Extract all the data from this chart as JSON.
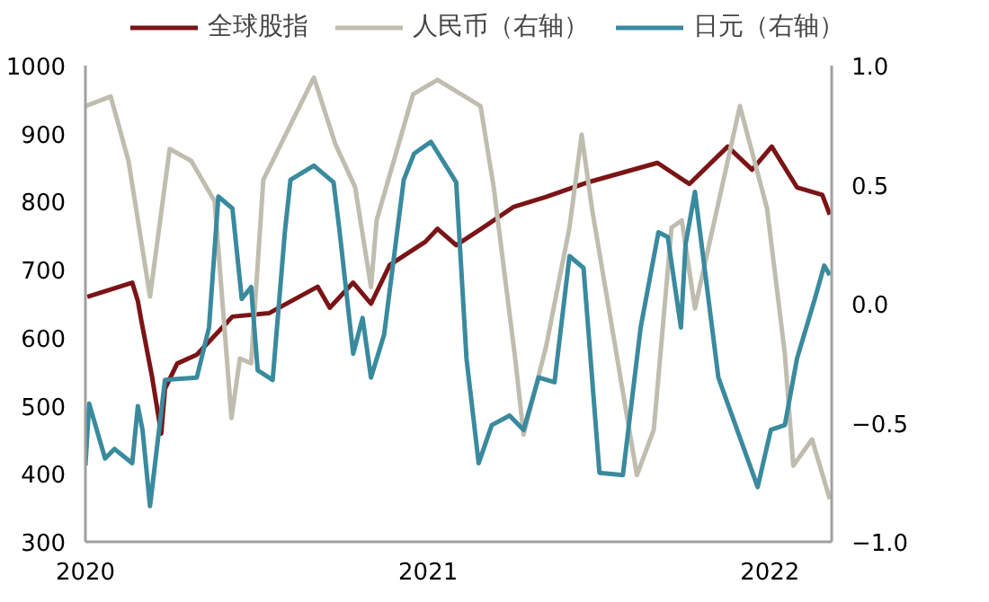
{
  "chart_data": {
    "type": "line",
    "legend": "top",
    "grid": false,
    "xlim": [
      "2020-01-01",
      "2022-03-08"
    ],
    "xticks": [
      {
        "value": "2020-01-01",
        "label": "2020"
      },
      {
        "value": "2021-01-01",
        "label": "2021"
      },
      {
        "value": "2022-01-01",
        "label": "2022"
      }
    ],
    "ylim": [
      300,
      1000
    ],
    "yticks": [
      300,
      400,
      500,
      600,
      700,
      800,
      900,
      1000
    ],
    "y2lim": [
      -1.0,
      1.0
    ],
    "y2ticks": [
      {
        "value": -1.0,
        "label": "−1.0"
      },
      {
        "value": -0.5,
        "label": "−0.5"
      },
      {
        "value": 0.0,
        "label": "0.0"
      },
      {
        "value": 0.5,
        "label": "0.5"
      },
      {
        "value": 1.0,
        "label": "1.0"
      }
    ],
    "series": [
      {
        "name": "全球股指",
        "color": "#7b1416",
        "x": [
          "2020-01-03",
          "2020-02-20",
          "2020-02-26",
          "2020-03-01",
          "2020-03-12",
          "2020-03-22",
          "2020-03-26",
          "2020-04-08",
          "2020-04-29",
          "2020-06-06",
          "2020-07-15",
          "2020-09-05",
          "2020-09-18",
          "2020-10-13",
          "2020-11-01",
          "2020-11-21",
          "2020-12-29",
          "2021-01-11",
          "2021-01-31",
          "2021-03-02",
          "2021-04-02",
          "2021-05-07",
          "2021-06-22",
          "2021-09-03",
          "2021-10-07",
          "2021-11-17",
          "2021-12-13",
          "2022-01-03",
          "2022-01-30",
          "2022-02-26",
          "2022-03-06"
        ],
        "values": [
          660,
          681,
          654,
          623,
          544,
          459,
          525,
          562,
          575,
          631,
          636,
          675,
          644,
          681,
          650,
          707,
          741,
          760,
          736,
          763,
          792,
          807,
          829,
          857,
          826,
          881,
          847,
          881,
          821,
          810,
          781
        ]
      },
      {
        "name": "人民币（右轴）",
        "color": "#bfbdaf",
        "axis": "y2",
        "x": [
          "2020-01-01",
          "2020-01-28",
          "2020-02-16",
          "2020-03-10",
          "2020-03-31",
          "2020-04-23",
          "2020-05-18",
          "2020-06-05",
          "2020-06-14",
          "2020-06-26",
          "2020-07-09",
          "2020-09-01",
          "2020-09-24",
          "2020-10-15",
          "2020-11-01",
          "2020-11-07",
          "2020-12-16",
          "2021-01-11",
          "2021-02-26",
          "2021-03-12",
          "2021-04-04",
          "2021-04-13",
          "2021-05-07",
          "2021-06-01",
          "2021-06-14",
          "2021-06-25",
          "2021-07-22",
          "2021-08-12",
          "2021-08-30",
          "2021-09-18",
          "2021-09-29",
          "2021-10-13",
          "2021-11-30",
          "2021-12-29",
          "2022-01-17",
          "2022-01-26",
          "2022-02-15",
          "2022-03-06"
        ],
        "values": [
          0.83,
          0.87,
          0.6,
          0.03,
          0.65,
          0.6,
          0.43,
          -0.48,
          -0.23,
          -0.25,
          0.52,
          0.95,
          0.67,
          0.49,
          0.07,
          0.35,
          0.88,
          0.94,
          0.83,
          0.49,
          -0.23,
          -0.55,
          -0.18,
          0.32,
          0.71,
          0.4,
          -0.23,
          -0.72,
          -0.53,
          0.32,
          0.35,
          -0.02,
          0.83,
          0.4,
          -0.21,
          -0.68,
          -0.57,
          -0.82
        ]
      },
      {
        "name": "日元（右轴）",
        "color": "#3a8a9e",
        "axis": "y2",
        "x": [
          "2020-01-01",
          "2020-01-05",
          "2020-01-22",
          "2020-02-01",
          "2020-02-20",
          "2020-02-26",
          "2020-03-02",
          "2020-03-10",
          "2020-03-26",
          "2020-04-29",
          "2020-05-12",
          "2020-05-22",
          "2020-06-06",
          "2020-06-16",
          "2020-06-26",
          "2020-07-03",
          "2020-07-19",
          "2020-08-01",
          "2020-08-07",
          "2020-09-01",
          "2020-09-22",
          "2020-09-28",
          "2020-10-13",
          "2020-10-23",
          "2020-11-01",
          "2020-11-15",
          "2020-12-06",
          "2020-12-17",
          "2021-01-04",
          "2021-01-31",
          "2021-02-11",
          "2021-02-24",
          "2021-03-10",
          "2021-03-29",
          "2021-04-13",
          "2021-04-29",
          "2021-05-16",
          "2021-06-01",
          "2021-06-16",
          "2021-07-03",
          "2021-07-28",
          "2021-08-16",
          "2021-09-04",
          "2021-09-14",
          "2021-09-28",
          "2021-10-03",
          "2021-10-13",
          "2021-11-07",
          "2021-12-19",
          "2022-01-02",
          "2022-01-17",
          "2022-01-30",
          "2022-02-18",
          "2022-02-28",
          "2022-03-06"
        ],
        "values": [
          -0.68,
          -0.42,
          -0.65,
          -0.61,
          -0.67,
          -0.43,
          -0.53,
          -0.85,
          -0.32,
          -0.31,
          -0.1,
          0.45,
          0.4,
          0.02,
          0.07,
          -0.28,
          -0.32,
          0.3,
          0.52,
          0.58,
          0.51,
          0.32,
          -0.21,
          -0.06,
          -0.31,
          -0.13,
          0.52,
          0.63,
          0.68,
          0.51,
          -0.23,
          -0.67,
          -0.51,
          -0.47,
          -0.53,
          -0.31,
          -0.33,
          0.2,
          0.15,
          -0.71,
          -0.72,
          -0.1,
          0.3,
          0.28,
          -0.1,
          0.25,
          0.47,
          -0.31,
          -0.77,
          -0.53,
          -0.51,
          -0.23,
          0.02,
          0.16,
          0.12
        ]
      }
    ]
  }
}
